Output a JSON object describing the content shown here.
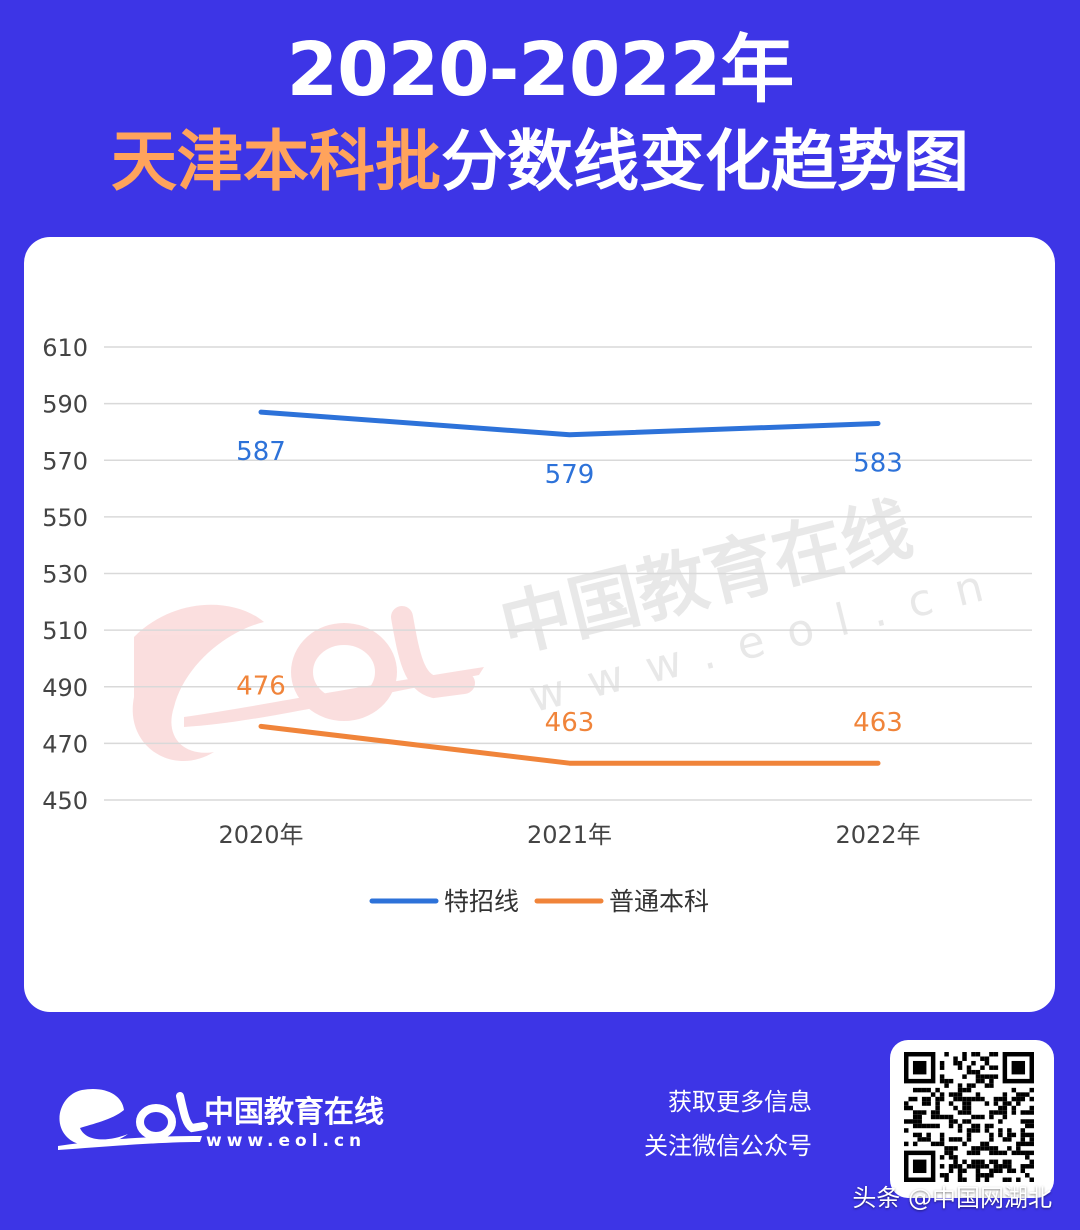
{
  "header": {
    "line1": "2020-2022年",
    "line2_highlight": "天津本科批",
    "line2_rest": "分数线变化趋势图"
  },
  "colors": {
    "background": "#3d35e6",
    "series_1": "#2d72d9",
    "series_2": "#f0843a",
    "title_highlight": "#ffa35c"
  },
  "chart_data": {
    "type": "line",
    "title": "",
    "xlabel": "",
    "ylabel": "",
    "categories": [
      "2020年",
      "2021年",
      "2022年"
    ],
    "ylim": [
      450,
      610
    ],
    "yticks": [
      "450",
      "470",
      "490",
      "510",
      "530",
      "550",
      "570",
      "590",
      "610"
    ],
    "grid": true,
    "legend_position": "bottom",
    "series": [
      {
        "name": "特招线",
        "values": [
          587,
          579,
          583
        ],
        "color": "#2d72d9"
      },
      {
        "name": "普通本科",
        "values": [
          476,
          463,
          463
        ],
        "color": "#f0843a"
      }
    ]
  },
  "watermark": {
    "text": "中国教育在线",
    "url": "www.eol.cn"
  },
  "footer": {
    "logo_text": "中国教育在线",
    "logo_url": "www.eol.cn",
    "promo_line1": "获取更多信息",
    "promo_line2": "关注微信公众号",
    "credit": "头条 @中国网湖北"
  }
}
